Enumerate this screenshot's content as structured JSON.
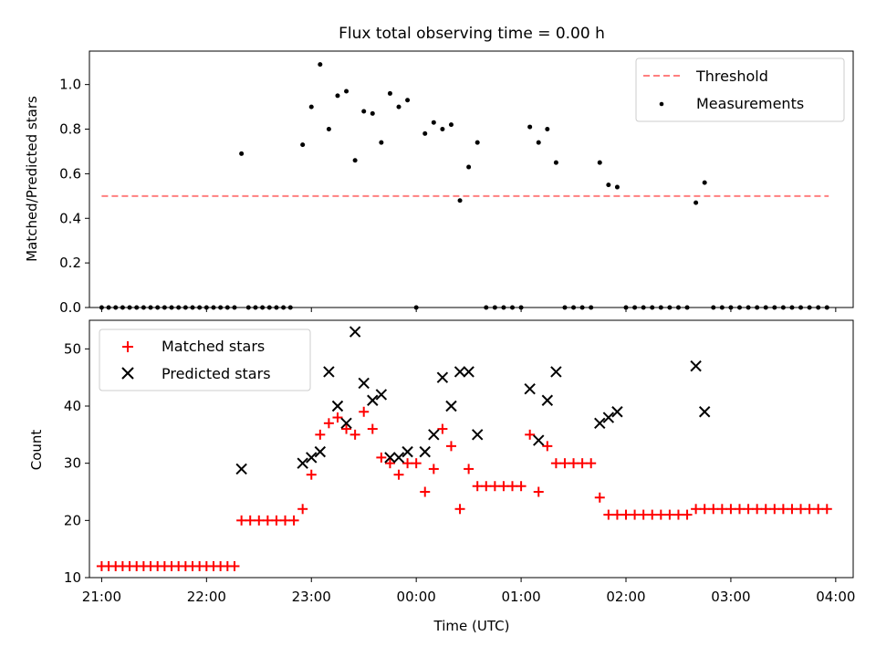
{
  "figure": {
    "title": "Flux total observing time = 0.00 h"
  },
  "chart_data": [
    {
      "type": "scatter",
      "ylabel": "Matched/Predicted stars",
      "xlim": [
        "20:53",
        "04:10"
      ],
      "ylim": [
        0,
        1.15
      ],
      "yticks": [
        "0.0",
        "0.2",
        "0.4",
        "0.6",
        "0.8",
        "1.0"
      ],
      "legend": {
        "position": "top-right",
        "entries": [
          "Threshold",
          "Measurements"
        ]
      },
      "series": [
        {
          "name": "Threshold",
          "style": "dashed-line",
          "color": "#ff7f7f",
          "points": [
            [
              "21:00",
              0.5
            ],
            [
              "03:56",
              0.5
            ]
          ]
        },
        {
          "name": "Measurements",
          "style": "dot",
          "color": "#000000",
          "points": [
            [
              "21:00",
              0
            ],
            [
              "21:04",
              0
            ],
            [
              "21:08",
              0
            ],
            [
              "21:12",
              0
            ],
            [
              "21:16",
              0
            ],
            [
              "21:20",
              0
            ],
            [
              "21:24",
              0
            ],
            [
              "21:28",
              0
            ],
            [
              "21:32",
              0
            ],
            [
              "21:36",
              0
            ],
            [
              "21:40",
              0
            ],
            [
              "21:44",
              0
            ],
            [
              "21:48",
              0
            ],
            [
              "21:52",
              0
            ],
            [
              "21:56",
              0
            ],
            [
              "22:00",
              0
            ],
            [
              "22:04",
              0
            ],
            [
              "22:08",
              0
            ],
            [
              "22:12",
              0
            ],
            [
              "22:16",
              0
            ],
            [
              "22:20",
              0.69
            ],
            [
              "22:24",
              0
            ],
            [
              "22:28",
              0
            ],
            [
              "22:32",
              0
            ],
            [
              "22:36",
              0
            ],
            [
              "22:40",
              0
            ],
            [
              "22:44",
              0
            ],
            [
              "22:48",
              0
            ],
            [
              "22:55",
              0.73
            ],
            [
              "23:00",
              0.9
            ],
            [
              "23:05",
              1.09
            ],
            [
              "23:10",
              0.8
            ],
            [
              "23:15",
              0.95
            ],
            [
              "23:20",
              0.97
            ],
            [
              "23:25",
              0.66
            ],
            [
              "23:30",
              0.88
            ],
            [
              "23:35",
              0.87
            ],
            [
              "23:40",
              0.74
            ],
            [
              "23:45",
              0.96
            ],
            [
              "23:50",
              0.9
            ],
            [
              "23:55",
              0.93
            ],
            [
              "00:00",
              0
            ],
            [
              "00:05",
              0.78
            ],
            [
              "00:10",
              0.83
            ],
            [
              "00:15",
              0.8
            ],
            [
              "00:20",
              0.82
            ],
            [
              "00:25",
              0.48
            ],
            [
              "00:30",
              0.63
            ],
            [
              "00:35",
              0.74
            ],
            [
              "00:40",
              0
            ],
            [
              "00:45",
              0
            ],
            [
              "00:50",
              0
            ],
            [
              "00:55",
              0
            ],
            [
              "01:00",
              0
            ],
            [
              "01:05",
              0.81
            ],
            [
              "01:10",
              0.74
            ],
            [
              "01:15",
              0.8
            ],
            [
              "01:20",
              0.65
            ],
            [
              "01:25",
              0
            ],
            [
              "01:30",
              0
            ],
            [
              "01:35",
              0
            ],
            [
              "01:40",
              0
            ],
            [
              "01:45",
              0.65
            ],
            [
              "01:50",
              0.55
            ],
            [
              "01:55",
              0.54
            ],
            [
              "02:00",
              0
            ],
            [
              "02:05",
              0
            ],
            [
              "02:10",
              0
            ],
            [
              "02:15",
              0
            ],
            [
              "02:20",
              0
            ],
            [
              "02:25",
              0
            ],
            [
              "02:30",
              0
            ],
            [
              "02:35",
              0
            ],
            [
              "02:40",
              0.47
            ],
            [
              "02:45",
              0.56
            ],
            [
              "02:50",
              0
            ],
            [
              "02:55",
              0
            ],
            [
              "03:00",
              0
            ],
            [
              "03:05",
              0
            ],
            [
              "03:10",
              0
            ],
            [
              "03:15",
              0
            ],
            [
              "03:20",
              0
            ],
            [
              "03:25",
              0
            ],
            [
              "03:30",
              0
            ],
            [
              "03:35",
              0
            ],
            [
              "03:40",
              0
            ],
            [
              "03:45",
              0
            ],
            [
              "03:50",
              0
            ],
            [
              "03:55",
              0
            ]
          ]
        }
      ]
    },
    {
      "type": "scatter",
      "xlabel": "Time (UTC)",
      "ylabel": "Count",
      "xticks": [
        "21:00",
        "22:00",
        "23:00",
        "00:00",
        "01:00",
        "02:00",
        "03:00",
        "04:00"
      ],
      "xlim": [
        "20:53",
        "04:10"
      ],
      "ylim": [
        10,
        55
      ],
      "yticks": [
        "10",
        "20",
        "30",
        "40",
        "50"
      ],
      "legend": {
        "position": "top-left",
        "entries": [
          "Matched stars",
          "Predicted stars"
        ]
      },
      "series": [
        {
          "name": "Matched stars",
          "marker": "plus",
          "color": "#ff0000",
          "points": [
            [
              "21:00",
              12
            ],
            [
              "21:04",
              12
            ],
            [
              "21:08",
              12
            ],
            [
              "21:12",
              12
            ],
            [
              "21:16",
              12
            ],
            [
              "21:20",
              12
            ],
            [
              "21:24",
              12
            ],
            [
              "21:28",
              12
            ],
            [
              "21:32",
              12
            ],
            [
              "21:36",
              12
            ],
            [
              "21:40",
              12
            ],
            [
              "21:44",
              12
            ],
            [
              "21:48",
              12
            ],
            [
              "21:52",
              12
            ],
            [
              "21:56",
              12
            ],
            [
              "22:00",
              12
            ],
            [
              "22:04",
              12
            ],
            [
              "22:08",
              12
            ],
            [
              "22:12",
              12
            ],
            [
              "22:16",
              12
            ],
            [
              "22:20",
              20
            ],
            [
              "22:25",
              20
            ],
            [
              "22:30",
              20
            ],
            [
              "22:35",
              20
            ],
            [
              "22:40",
              20
            ],
            [
              "22:45",
              20
            ],
            [
              "22:50",
              20
            ],
            [
              "22:55",
              22
            ],
            [
              "23:00",
              28
            ],
            [
              "23:05",
              35
            ],
            [
              "23:10",
              37
            ],
            [
              "23:15",
              38
            ],
            [
              "23:20",
              36
            ],
            [
              "23:25",
              35
            ],
            [
              "23:30",
              39
            ],
            [
              "23:35",
              36
            ],
            [
              "23:40",
              31
            ],
            [
              "23:45",
              30
            ],
            [
              "23:50",
              28
            ],
            [
              "23:55",
              30
            ],
            [
              "00:00",
              30
            ],
            [
              "00:05",
              25
            ],
            [
              "00:10",
              29
            ],
            [
              "00:15",
              36
            ],
            [
              "00:20",
              33
            ],
            [
              "00:25",
              22
            ],
            [
              "00:30",
              29
            ],
            [
              "00:35",
              26
            ],
            [
              "00:40",
              26
            ],
            [
              "00:45",
              26
            ],
            [
              "00:50",
              26
            ],
            [
              "00:55",
              26
            ],
            [
              "01:00",
              26
            ],
            [
              "01:05",
              35
            ],
            [
              "01:10",
              25
            ],
            [
              "01:15",
              33
            ],
            [
              "01:20",
              30
            ],
            [
              "01:25",
              30
            ],
            [
              "01:30",
              30
            ],
            [
              "01:35",
              30
            ],
            [
              "01:40",
              30
            ],
            [
              "01:45",
              24
            ],
            [
              "01:50",
              21
            ],
            [
              "01:55",
              21
            ],
            [
              "02:00",
              21
            ],
            [
              "02:05",
              21
            ],
            [
              "02:10",
              21
            ],
            [
              "02:15",
              21
            ],
            [
              "02:20",
              21
            ],
            [
              "02:25",
              21
            ],
            [
              "02:30",
              21
            ],
            [
              "02:35",
              21
            ],
            [
              "02:40",
              22
            ],
            [
              "02:45",
              22
            ],
            [
              "02:50",
              22
            ],
            [
              "02:55",
              22
            ],
            [
              "03:00",
              22
            ],
            [
              "03:05",
              22
            ],
            [
              "03:10",
              22
            ],
            [
              "03:15",
              22
            ],
            [
              "03:20",
              22
            ],
            [
              "03:25",
              22
            ],
            [
              "03:30",
              22
            ],
            [
              "03:35",
              22
            ],
            [
              "03:40",
              22
            ],
            [
              "03:45",
              22
            ],
            [
              "03:50",
              22
            ],
            [
              "03:55",
              22
            ]
          ]
        },
        {
          "name": "Predicted stars",
          "marker": "x",
          "color": "#000000",
          "points": [
            [
              "22:20",
              29
            ],
            [
              "22:55",
              30
            ],
            [
              "23:00",
              31
            ],
            [
              "23:05",
              32
            ],
            [
              "23:10",
              46
            ],
            [
              "23:15",
              40
            ],
            [
              "23:20",
              37
            ],
            [
              "23:25",
              53
            ],
            [
              "23:30",
              44
            ],
            [
              "23:35",
              41
            ],
            [
              "23:40",
              42
            ],
            [
              "23:45",
              31
            ],
            [
              "23:50",
              31
            ],
            [
              "23:55",
              32
            ],
            [
              "00:05",
              32
            ],
            [
              "00:10",
              35
            ],
            [
              "00:15",
              45
            ],
            [
              "00:20",
              40
            ],
            [
              "00:25",
              46
            ],
            [
              "00:30",
              46
            ],
            [
              "00:35",
              35
            ],
            [
              "01:05",
              43
            ],
            [
              "01:10",
              34
            ],
            [
              "01:15",
              41
            ],
            [
              "01:20",
              46
            ],
            [
              "01:45",
              37
            ],
            [
              "01:50",
              38
            ],
            [
              "01:55",
              39
            ],
            [
              "02:40",
              47
            ],
            [
              "02:45",
              39
            ]
          ]
        }
      ]
    }
  ]
}
